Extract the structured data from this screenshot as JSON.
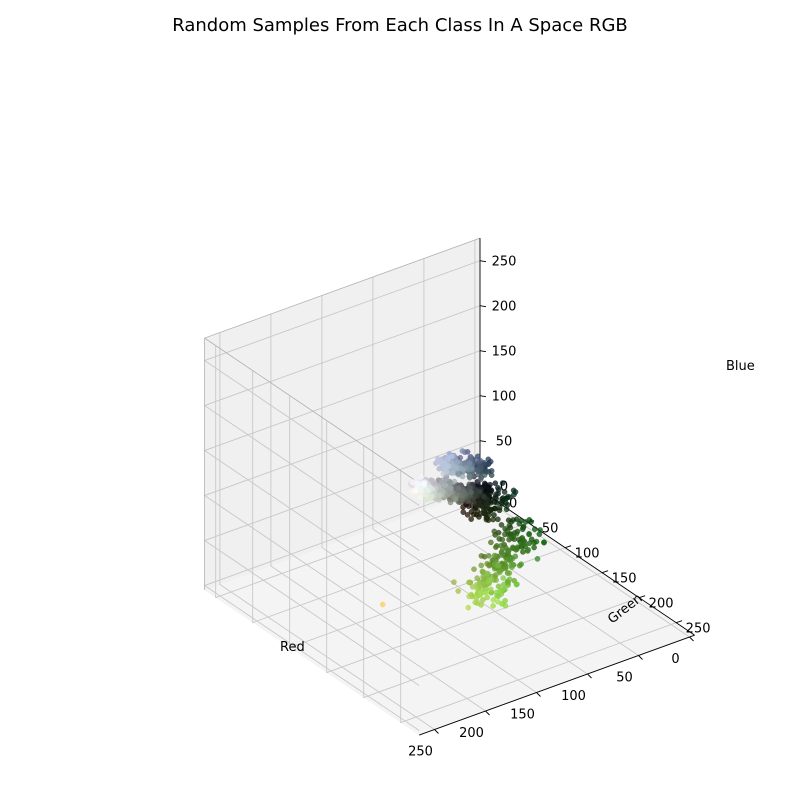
{
  "chart_data": {
    "type": "scatter",
    "projection": "3d",
    "title": "Random Samples From Each Class In A Space RGB",
    "xlabel": "Red",
    "ylabel": "Green",
    "zlabel": "Blue",
    "xticks": [
      "0",
      "50",
      "100",
      "150",
      "200",
      "250"
    ],
    "yticks": [
      "0",
      "50",
      "100",
      "150",
      "200",
      "250"
    ],
    "zticks": [
      "0",
      "50",
      "100",
      "150",
      "200",
      "250"
    ],
    "xlim": [
      0,
      260
    ],
    "ylim": [
      0,
      260
    ],
    "zlim": [
      0,
      260
    ],
    "grid": true,
    "point_color": "each point drawn in its own RGB color",
    "series": [
      {
        "id": "neutral-class",
        "relation": "R≈G≈B",
        "r_range": [
          0,
          250
        ],
        "spread": 8
      },
      {
        "id": "blue-class",
        "relation": "B≈R+35, G≈R+12",
        "r_range": [
          40,
          190
        ],
        "spread": 10
      },
      {
        "id": "green-class",
        "relation": "G≈R+55, B≈0.45R",
        "r_range": [
          10,
          170
        ],
        "spread": 18
      },
      {
        "id": "dark-class",
        "relation": "R,G,B near 0-40, G slightly higher",
        "r_range": [
          0,
          40
        ],
        "spread": 8
      }
    ],
    "outliers": [
      {
        "r": 250,
        "g": 205,
        "b": 95
      }
    ]
  }
}
